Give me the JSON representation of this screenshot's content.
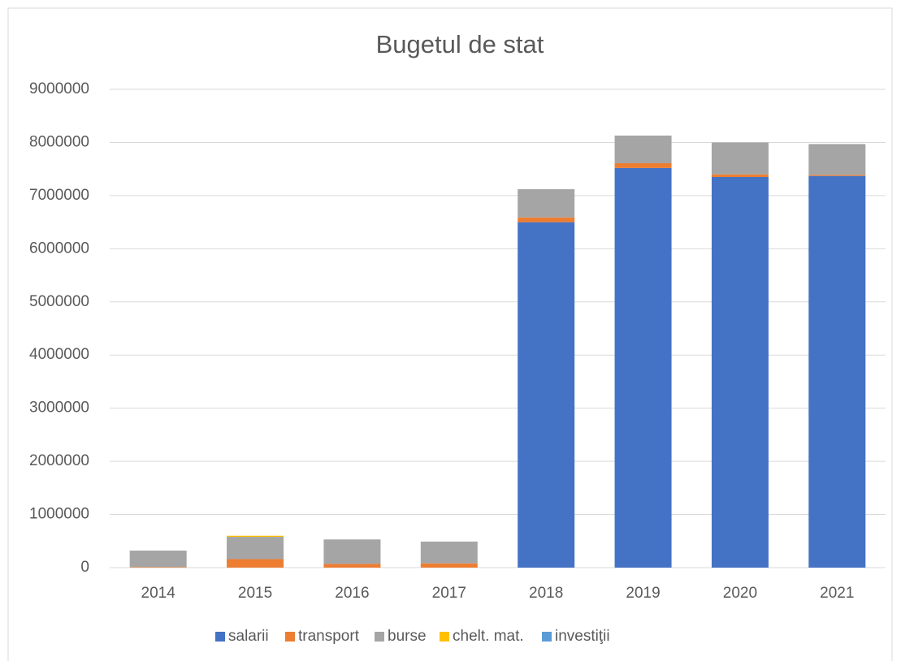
{
  "chart_data": {
    "type": "stacked_bar",
    "title": "Bugetul de stat",
    "categories": [
      "2014",
      "2015",
      "2016",
      "2017",
      "2018",
      "2019",
      "2020",
      "2021"
    ],
    "series": [
      {
        "name": "salarii",
        "color": "#4472c4",
        "values": [
          0,
          0,
          0,
          0,
          6500000,
          7520000,
          7350000,
          7370000
        ]
      },
      {
        "name": "transport",
        "color": "#ed7d31",
        "values": [
          10000,
          160000,
          70000,
          80000,
          90000,
          90000,
          50000,
          20000
        ]
      },
      {
        "name": "burse",
        "color": "#a5a5a5",
        "values": [
          310000,
          420000,
          460000,
          410000,
          530000,
          520000,
          600000,
          580000
        ]
      },
      {
        "name": "chelt. mat.",
        "color": "#ffc000",
        "values": [
          0,
          20000,
          0,
          0,
          0,
          0,
          0,
          0
        ]
      },
      {
        "name": "investiţii",
        "color": "#5b9bd5",
        "values": [
          0,
          0,
          0,
          0,
          0,
          0,
          0,
          0
        ]
      }
    ],
    "ylim": [
      0,
      9000000
    ],
    "yticks": [
      0,
      1000000,
      2000000,
      3000000,
      4000000,
      5000000,
      6000000,
      7000000,
      8000000,
      9000000
    ],
    "grid": true
  }
}
